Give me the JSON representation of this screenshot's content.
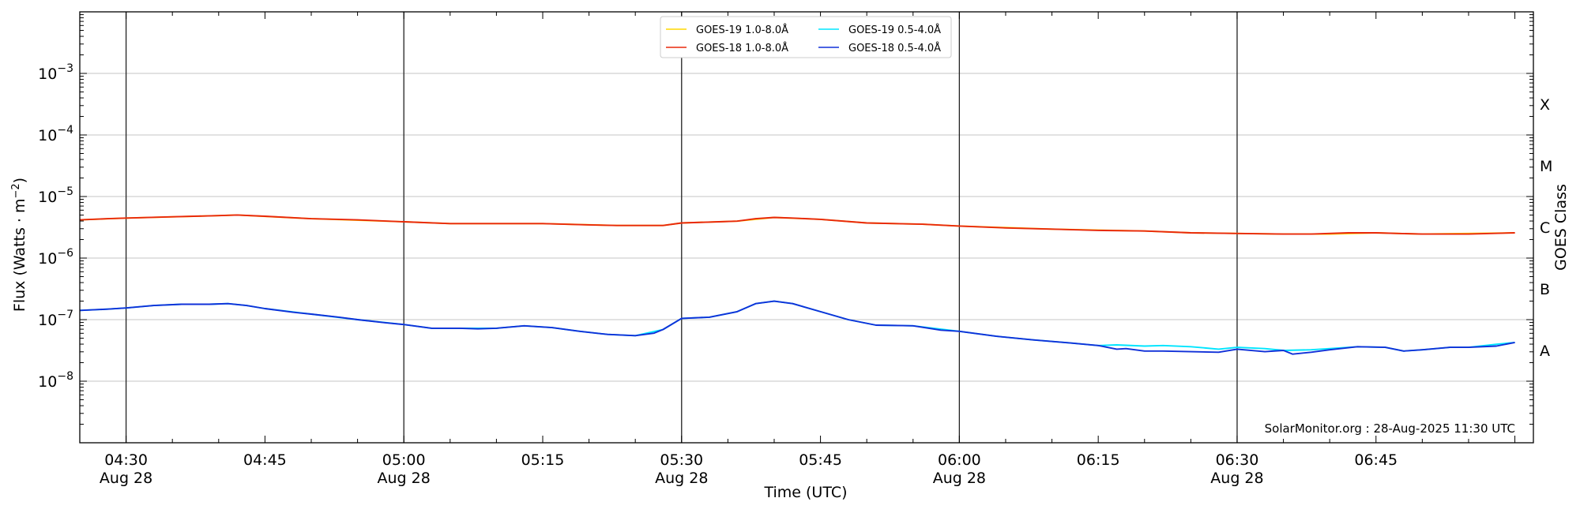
{
  "chart_data": {
    "type": "line",
    "title": "",
    "xlabel": "Time (UTC)",
    "ylabel_main": "Flux (Watts · m",
    "ylabel_sup": "−2",
    "ylabel_close": ")",
    "ylabel_right": "GOES Class",
    "yscale": "log",
    "ylim": [
      1e-09,
      0.01
    ],
    "xlim_minutes": [
      265,
      422
    ],
    "grid": "horizontal",
    "legend_position": "top-center",
    "watermark": "SolarMonitor.org : 28-Aug-2025 11:30 UTC",
    "y_ticks": [
      {
        "exp": -8,
        "base": "10",
        "sup": "−8"
      },
      {
        "exp": -7,
        "base": "10",
        "sup": "−7"
      },
      {
        "exp": -6,
        "base": "10",
        "sup": "−6"
      },
      {
        "exp": -5,
        "base": "10",
        "sup": "−5"
      },
      {
        "exp": -4,
        "base": "10",
        "sup": "−4"
      },
      {
        "exp": -3,
        "base": "10",
        "sup": "−3"
      }
    ],
    "x_ticks": [
      {
        "t": 270,
        "label": "04:30",
        "date": "Aug 28"
      },
      {
        "t": 285,
        "label": "04:45",
        "date": ""
      },
      {
        "t": 300,
        "label": "05:00",
        "date": "Aug 28"
      },
      {
        "t": 315,
        "label": "05:15",
        "date": ""
      },
      {
        "t": 330,
        "label": "05:30",
        "date": "Aug 28"
      },
      {
        "t": 345,
        "label": "05:45",
        "date": ""
      },
      {
        "t": 360,
        "label": "06:00",
        "date": "Aug 28"
      },
      {
        "t": 375,
        "label": "06:15",
        "date": ""
      },
      {
        "t": 390,
        "label": "06:30",
        "date": "Aug 28"
      },
      {
        "t": 405,
        "label": "06:45",
        "date": ""
      }
    ],
    "vlines_minutes": [
      270,
      300,
      330,
      360,
      390
    ],
    "goes_classes": [
      {
        "label": "A",
        "exp": -7.5
      },
      {
        "label": "B",
        "exp": -6.5
      },
      {
        "label": "C",
        "exp": -5.5
      },
      {
        "label": "M",
        "exp": -4.5
      },
      {
        "label": "X",
        "exp": -3.5
      }
    ],
    "series": [
      {
        "name": "GOES-19 1.0-8.0Å",
        "color": "#ffd700",
        "points": [
          [
            265,
            -5.38
          ],
          [
            270,
            -5.35
          ],
          [
            280,
            -5.31
          ],
          [
            282,
            -5.3
          ],
          [
            290,
            -5.36
          ],
          [
            300,
            -5.41
          ],
          [
            305,
            -5.44
          ],
          [
            315,
            -5.44
          ],
          [
            323,
            -5.47
          ],
          [
            328,
            -5.47
          ],
          [
            330,
            -5.43
          ],
          [
            336,
            -5.4
          ],
          [
            340,
            -5.34
          ],
          [
            345,
            -5.37
          ],
          [
            350,
            -5.43
          ],
          [
            356,
            -5.45
          ],
          [
            360,
            -5.48
          ],
          [
            370,
            -5.53
          ],
          [
            380,
            -5.56
          ],
          [
            385,
            -5.59
          ],
          [
            395,
            -5.61
          ],
          [
            400,
            -5.61
          ],
          [
            405,
            -5.59
          ],
          [
            410,
            -5.61
          ],
          [
            420,
            -5.59
          ]
        ]
      },
      {
        "name": "GOES-18 1.0-8.0Å",
        "color": "#e8280c",
        "points": [
          [
            265,
            -5.38
          ],
          [
            268,
            -5.36
          ],
          [
            270,
            -5.35
          ],
          [
            275,
            -5.33
          ],
          [
            280,
            -5.31
          ],
          [
            282,
            -5.3
          ],
          [
            285,
            -5.32
          ],
          [
            290,
            -5.36
          ],
          [
            295,
            -5.38
          ],
          [
            300,
            -5.41
          ],
          [
            305,
            -5.44
          ],
          [
            310,
            -5.44
          ],
          [
            315,
            -5.44
          ],
          [
            320,
            -5.46
          ],
          [
            323,
            -5.47
          ],
          [
            328,
            -5.47
          ],
          [
            330,
            -5.43
          ],
          [
            334,
            -5.41
          ],
          [
            336,
            -5.4
          ],
          [
            338,
            -5.36
          ],
          [
            340,
            -5.34
          ],
          [
            342,
            -5.35
          ],
          [
            345,
            -5.37
          ],
          [
            350,
            -5.43
          ],
          [
            356,
            -5.45
          ],
          [
            360,
            -5.48
          ],
          [
            365,
            -5.51
          ],
          [
            370,
            -5.53
          ],
          [
            375,
            -5.55
          ],
          [
            380,
            -5.56
          ],
          [
            385,
            -5.59
          ],
          [
            390,
            -5.6
          ],
          [
            395,
            -5.61
          ],
          [
            398,
            -5.61
          ],
          [
            402,
            -5.59
          ],
          [
            405,
            -5.59
          ],
          [
            410,
            -5.61
          ],
          [
            415,
            -5.61
          ],
          [
            420,
            -5.59
          ]
        ]
      },
      {
        "name": "GOES-19 0.5-4.0Å",
        "color": "#00e5ff",
        "points": [
          [
            265,
            -6.85
          ],
          [
            268,
            -6.83
          ],
          [
            270,
            -6.81
          ],
          [
            273,
            -6.77
          ],
          [
            276,
            -6.75
          ],
          [
            279,
            -6.75
          ],
          [
            281,
            -6.74
          ],
          [
            283,
            -6.77
          ],
          [
            285,
            -6.82
          ],
          [
            290,
            -6.91
          ],
          [
            295,
            -7.0
          ],
          [
            300,
            -7.08
          ],
          [
            303,
            -7.14
          ],
          [
            306,
            -7.14
          ],
          [
            310,
            -7.14
          ],
          [
            313,
            -7.1
          ],
          [
            316,
            -7.13
          ],
          [
            319,
            -7.19
          ],
          [
            322,
            -7.24
          ],
          [
            325,
            -7.26
          ],
          [
            328,
            -7.16
          ],
          [
            330,
            -6.98
          ],
          [
            333,
            -6.96
          ],
          [
            336,
            -6.87
          ],
          [
            338,
            -6.74
          ],
          [
            340,
            -6.7
          ],
          [
            342,
            -6.74
          ],
          [
            345,
            -6.87
          ],
          [
            348,
            -7.0
          ],
          [
            351,
            -7.09
          ],
          [
            355,
            -7.1
          ],
          [
            360,
            -7.19
          ],
          [
            364,
            -7.27
          ],
          [
            368,
            -7.33
          ],
          [
            372,
            -7.38
          ],
          [
            375,
            -7.42
          ],
          [
            377,
            -7.41
          ],
          [
            380,
            -7.43
          ],
          [
            382,
            -7.42
          ],
          [
            385,
            -7.44
          ],
          [
            388,
            -7.48
          ],
          [
            390,
            -7.45
          ],
          [
            393,
            -7.47
          ],
          [
            395,
            -7.5
          ],
          [
            398,
            -7.49
          ],
          [
            400,
            -7.47
          ],
          [
            403,
            -7.44
          ],
          [
            406,
            -7.45
          ],
          [
            408,
            -7.51
          ],
          [
            410,
            -7.49
          ],
          [
            413,
            -7.45
          ],
          [
            415,
            -7.45
          ],
          [
            418,
            -7.4
          ],
          [
            420,
            -7.37
          ]
        ]
      },
      {
        "name": "GOES-18 0.5-4.0Å",
        "color": "#1030d8",
        "points": [
          [
            265,
            -6.85
          ],
          [
            268,
            -6.83
          ],
          [
            270,
            -6.81
          ],
          [
            273,
            -6.77
          ],
          [
            276,
            -6.75
          ],
          [
            279,
            -6.75
          ],
          [
            281,
            -6.74
          ],
          [
            283,
            -6.77
          ],
          [
            285,
            -6.82
          ],
          [
            288,
            -6.88
          ],
          [
            290,
            -6.91
          ],
          [
            293,
            -6.96
          ],
          [
            295,
            -7.0
          ],
          [
            298,
            -7.05
          ],
          [
            300,
            -7.08
          ],
          [
            303,
            -7.14
          ],
          [
            306,
            -7.14
          ],
          [
            308,
            -7.15
          ],
          [
            310,
            -7.14
          ],
          [
            313,
            -7.1
          ],
          [
            316,
            -7.13
          ],
          [
            319,
            -7.19
          ],
          [
            322,
            -7.24
          ],
          [
            325,
            -7.26
          ],
          [
            327,
            -7.22
          ],
          [
            328,
            -7.16
          ],
          [
            330,
            -6.98
          ],
          [
            333,
            -6.96
          ],
          [
            336,
            -6.87
          ],
          [
            338,
            -6.74
          ],
          [
            340,
            -6.7
          ],
          [
            342,
            -6.74
          ],
          [
            345,
            -6.87
          ],
          [
            348,
            -7.0
          ],
          [
            351,
            -7.09
          ],
          [
            355,
            -7.1
          ],
          [
            358,
            -7.17
          ],
          [
            360,
            -7.19
          ],
          [
            364,
            -7.27
          ],
          [
            368,
            -7.33
          ],
          [
            372,
            -7.38
          ],
          [
            375,
            -7.42
          ],
          [
            377,
            -7.48
          ],
          [
            378,
            -7.47
          ],
          [
            380,
            -7.51
          ],
          [
            382,
            -7.51
          ],
          [
            385,
            -7.52
          ],
          [
            388,
            -7.53
          ],
          [
            390,
            -7.48
          ],
          [
            393,
            -7.52
          ],
          [
            395,
            -7.5
          ],
          [
            396,
            -7.56
          ],
          [
            398,
            -7.53
          ],
          [
            400,
            -7.49
          ],
          [
            403,
            -7.44
          ],
          [
            406,
            -7.45
          ],
          [
            408,
            -7.51
          ],
          [
            410,
            -7.49
          ],
          [
            413,
            -7.45
          ],
          [
            415,
            -7.45
          ],
          [
            418,
            -7.43
          ],
          [
            420,
            -7.37
          ]
        ]
      }
    ]
  }
}
